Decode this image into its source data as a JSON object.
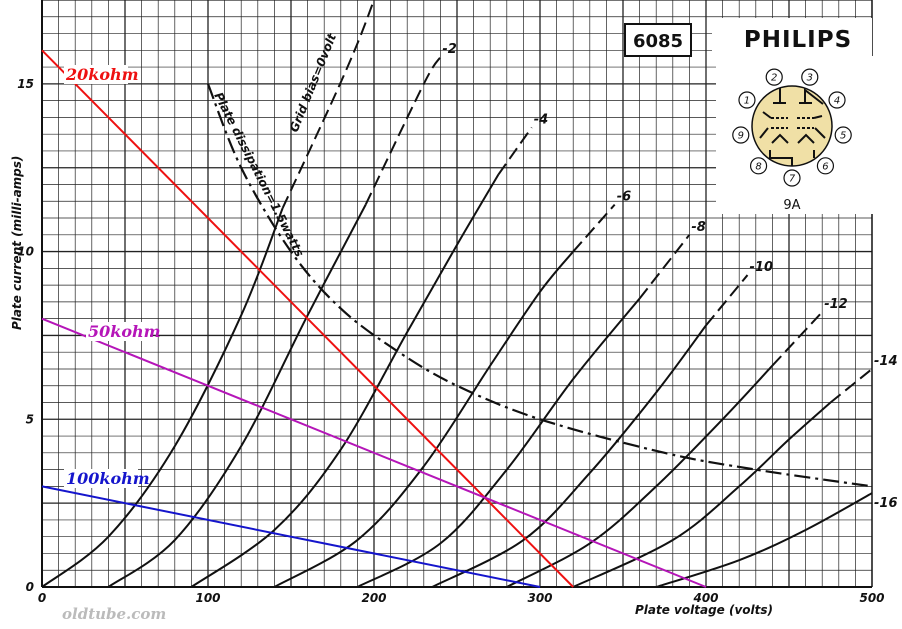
{
  "header": {
    "tube_type": "6085",
    "brand": "PHILIPS",
    "base_code": "9A",
    "pin_numbers": [
      "1",
      "2",
      "3",
      "4",
      "5",
      "6",
      "7",
      "8",
      "9"
    ]
  },
  "watermark": "oldtube.com",
  "chart_data": {
    "type": "line",
    "xlabel": "Plate voltage (volts)",
    "ylabel": "Plate current (milli-amps)",
    "xlim": [
      0,
      500
    ],
    "ylim": [
      0,
      17.5
    ],
    "x_ticks": [
      "0",
      "100",
      "200",
      "300",
      "400",
      "500"
    ],
    "y_ticks": [
      "0",
      "5",
      "10",
      "15"
    ],
    "grid": true,
    "grid_step": {
      "x": 10,
      "y": 0.5
    },
    "series": [
      {
        "name": "Grid bias=0volt",
        "dashed_from_x": 145,
        "points": [
          [
            0,
            0
          ],
          [
            40,
            1.5
          ],
          [
            80,
            4.2
          ],
          [
            120,
            8.1
          ],
          [
            145,
            11.3
          ],
          [
            175,
            14.5
          ],
          [
            190,
            16.2
          ],
          [
            200,
            17.5
          ]
        ]
      },
      {
        "name": "-2",
        "dashed_from_x": 195,
        "points": [
          [
            40,
            0
          ],
          [
            80,
            1.4
          ],
          [
            120,
            4.2
          ],
          [
            160,
            8.1
          ],
          [
            195,
            11.4
          ],
          [
            230,
            15.0
          ],
          [
            240,
            15.8
          ]
        ]
      },
      {
        "name": "-4",
        "dashed_from_x": 275,
        "points": [
          [
            90,
            0
          ],
          [
            140,
            1.7
          ],
          [
            180,
            4.1
          ],
          [
            220,
            7.6
          ],
          [
            250,
            10.2
          ],
          [
            275,
            12.3
          ],
          [
            295,
            13.7
          ]
        ]
      },
      {
        "name": "-6",
        "dashed_from_x": 320,
        "points": [
          [
            140,
            0
          ],
          [
            190,
            1.4
          ],
          [
            230,
            3.6
          ],
          [
            270,
            6.6
          ],
          [
            300,
            8.8
          ],
          [
            320,
            10.0
          ],
          [
            345,
            11.4
          ]
        ]
      },
      {
        "name": "-8",
        "dashed_from_x": 360,
        "points": [
          [
            190,
            0
          ],
          [
            240,
            1.3
          ],
          [
            280,
            3.5
          ],
          [
            320,
            6.2
          ],
          [
            360,
            8.6
          ],
          [
            390,
            10.5
          ]
        ]
      },
      {
        "name": "-10",
        "dashed_from_x": 400,
        "points": [
          [
            235,
            0
          ],
          [
            290,
            1.4
          ],
          [
            330,
            3.4
          ],
          [
            370,
            5.8
          ],
          [
            400,
            7.8
          ],
          [
            425,
            9.3
          ]
        ]
      },
      {
        "name": "-12",
        "dashed_from_x": 440,
        "points": [
          [
            280,
            0
          ],
          [
            330,
            1.3
          ],
          [
            370,
            3.0
          ],
          [
            410,
            5.0
          ],
          [
            440,
            6.6
          ],
          [
            470,
            8.2
          ]
        ]
      },
      {
        "name": "-14",
        "dashed_from_x": 475,
        "points": [
          [
            320,
            0
          ],
          [
            380,
            1.4
          ],
          [
            420,
            3.0
          ],
          [
            450,
            4.4
          ],
          [
            475,
            5.5
          ],
          [
            500,
            6.5
          ]
        ]
      },
      {
        "name": "-16",
        "dashed_from_x": 600,
        "points": [
          [
            370,
            0
          ],
          [
            420,
            0.8
          ],
          [
            460,
            1.7
          ],
          [
            500,
            2.8
          ]
        ]
      }
    ],
    "dissipation_limit": {
      "name": "Plate dissipation=1.5watts",
      "points": [
        [
          100,
          15
        ],
        [
          120,
          12.5
        ],
        [
          150,
          10
        ],
        [
          180,
          8.3
        ],
        [
          215,
          7.0
        ],
        [
          250,
          6.0
        ],
        [
          300,
          5.0
        ],
        [
          375,
          4.0
        ],
        [
          430,
          3.5
        ],
        [
          500,
          3.0
        ]
      ]
    },
    "load_lines": [
      {
        "name": "20kohm",
        "color": "#ee1111",
        "points": [
          [
            0,
            16.0
          ],
          [
            320,
            0
          ]
        ]
      },
      {
        "name": "50kohm",
        "color": "#b515b8",
        "points": [
          [
            0,
            8.0
          ],
          [
            400,
            0
          ]
        ]
      },
      {
        "name": "100kohm",
        "color": "#1515cc",
        "points": [
          [
            0,
            3.0
          ],
          [
            300,
            0
          ]
        ]
      }
    ]
  }
}
